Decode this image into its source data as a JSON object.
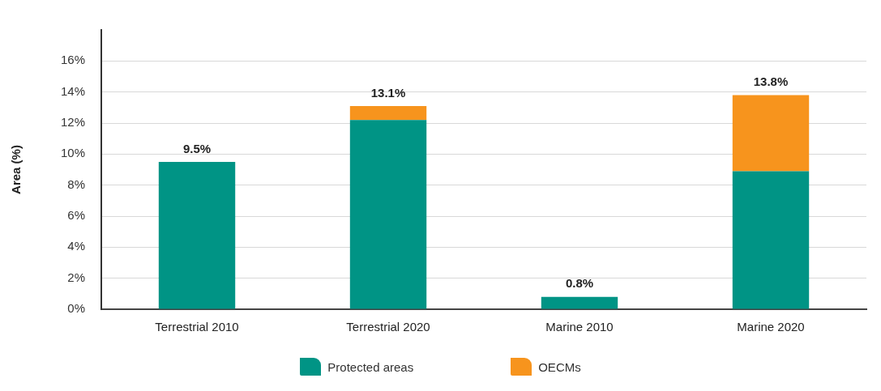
{
  "chart_data": {
    "type": "bar",
    "stacked": true,
    "ylabel": "Area (%)",
    "categories": [
      "Terrestrial 2010",
      "Terrestrial 2020",
      "Marine 2010",
      "Marine 2020"
    ],
    "series": [
      {
        "name": "Protected areas",
        "color": "#009485",
        "values": [
          9.5,
          12.2,
          0.8,
          8.9
        ]
      },
      {
        "name": "OECMs",
        "color": "#f7941d",
        "values": [
          null,
          0.9,
          null,
          4.9
        ]
      }
    ],
    "totals": [
      "9.5%",
      "13.1%",
      "0.8%",
      "13.8%"
    ],
    "ylim": [
      0,
      18
    ],
    "yticks": [
      {
        "value": 0,
        "label": "0%"
      },
      {
        "value": 2,
        "label": "2%"
      },
      {
        "value": 4,
        "label": "4%"
      },
      {
        "value": 6,
        "label": "6%"
      },
      {
        "value": 8,
        "label": "8%"
      },
      {
        "value": 10,
        "label": "10%"
      },
      {
        "value": 12,
        "label": "12%"
      },
      {
        "value": 14,
        "label": "14%"
      },
      {
        "value": 16,
        "label": "16%"
      }
    ],
    "grid": "y",
    "legend": "bottom"
  }
}
